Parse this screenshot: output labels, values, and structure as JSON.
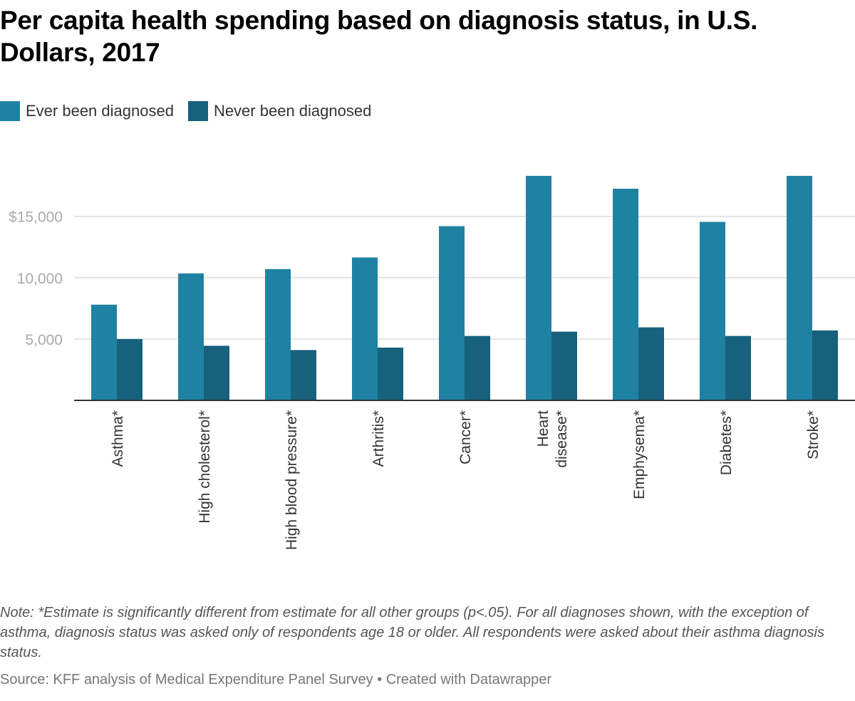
{
  "chart_data": {
    "type": "bar",
    "title": "Per capita health spending based on diagnosis status, in U.S. Dollars, 2017",
    "categories": [
      "Asthma*",
      "High cholesterol*",
      "High blood pressure*",
      "Arthritis*",
      "Cancer*",
      "Heart disease*",
      "Emphysema*",
      "Diabetes*",
      "Stroke*"
    ],
    "category_lines": [
      [
        "Asthma*"
      ],
      [
        "High cholesterol*"
      ],
      [
        "High blood pressure*"
      ],
      [
        "Arthritis*"
      ],
      [
        "Cancer*"
      ],
      [
        "Heart",
        "disease*"
      ],
      [
        "Emphysema*"
      ],
      [
        "Diabetes*"
      ],
      [
        "Stroke*"
      ]
    ],
    "series": [
      {
        "name": "Ever been diagnosed",
        "color": "#1f82a3",
        "values": [
          7800,
          10350,
          10700,
          11650,
          14200,
          18300,
          17250,
          14550,
          18300
        ]
      },
      {
        "name": "Never been diagnosed",
        "color": "#17617d",
        "values": [
          5000,
          4450,
          4100,
          4300,
          5250,
          5600,
          5950,
          5250,
          5700
        ]
      }
    ],
    "yticks": [
      5000,
      10000,
      15000
    ],
    "ytick_labels": [
      "5,000",
      "10,000",
      "$15,000"
    ],
    "ylim": [
      0,
      20000
    ],
    "grid": true,
    "legend": "top-left",
    "xlabel": "",
    "ylabel": ""
  },
  "note": "Note: *Estimate is significantly different from estimate for all other groups (p<.05). For all diagnoses shown, with the exception of asthma, diagnosis status was asked only of respondents age 18 or older. All respondents were asked about their asthma diagnosis status.",
  "source": "Source: KFF analysis of Medical Expenditure Panel Survey • Created with Datawrapper"
}
